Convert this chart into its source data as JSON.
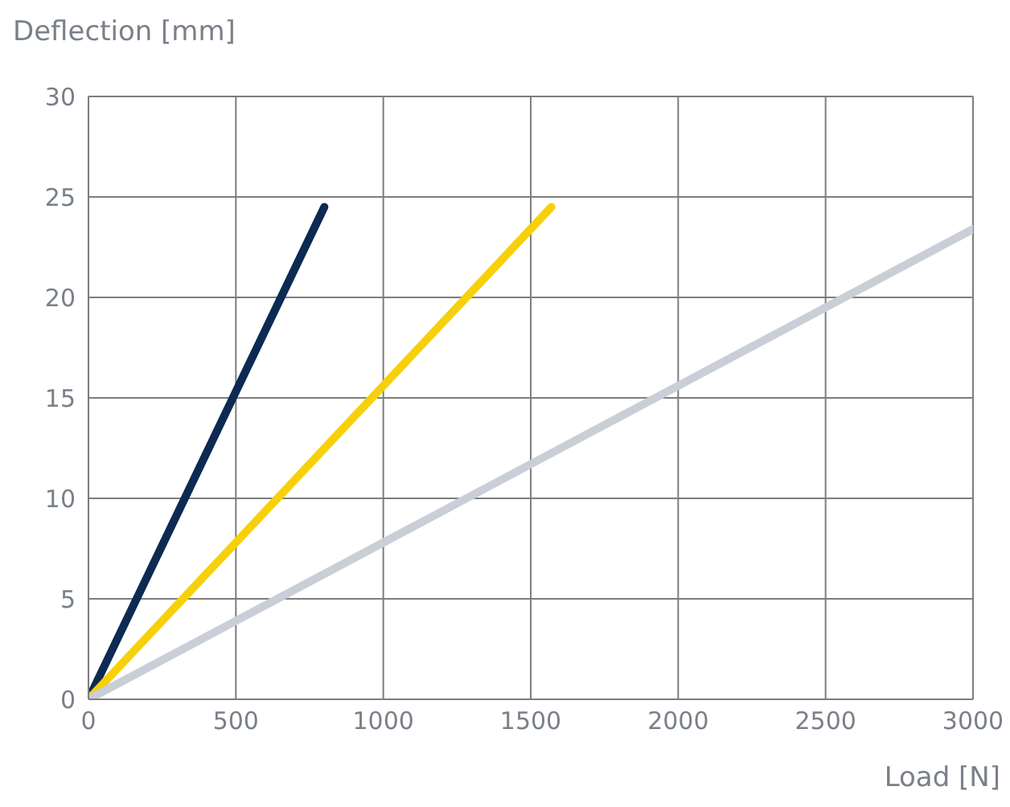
{
  "chart_data": {
    "type": "line",
    "xlabel": "Load [N]",
    "ylabel": "Deflection [mm]",
    "xlim": [
      0,
      3000
    ],
    "xticks": [
      0,
      500,
      1000,
      1500,
      2000,
      2500,
      3000
    ],
    "ylim": [
      0,
      30
    ],
    "yticks": [
      0,
      5,
      10,
      15,
      20,
      25,
      30
    ],
    "grid": true,
    "legend": false,
    "marker": "none",
    "line_style": "solid",
    "series": [
      {
        "color": "#0c2a52",
        "x": [
          0,
          800
        ],
        "values": [
          0,
          24.5
        ]
      },
      {
        "color": "#f6d10a",
        "x": [
          0,
          1570
        ],
        "values": [
          0,
          24.5
        ]
      },
      {
        "color": "#c9ced7",
        "x": [
          0,
          3000
        ],
        "values": [
          0,
          23.4
        ]
      }
    ]
  }
}
